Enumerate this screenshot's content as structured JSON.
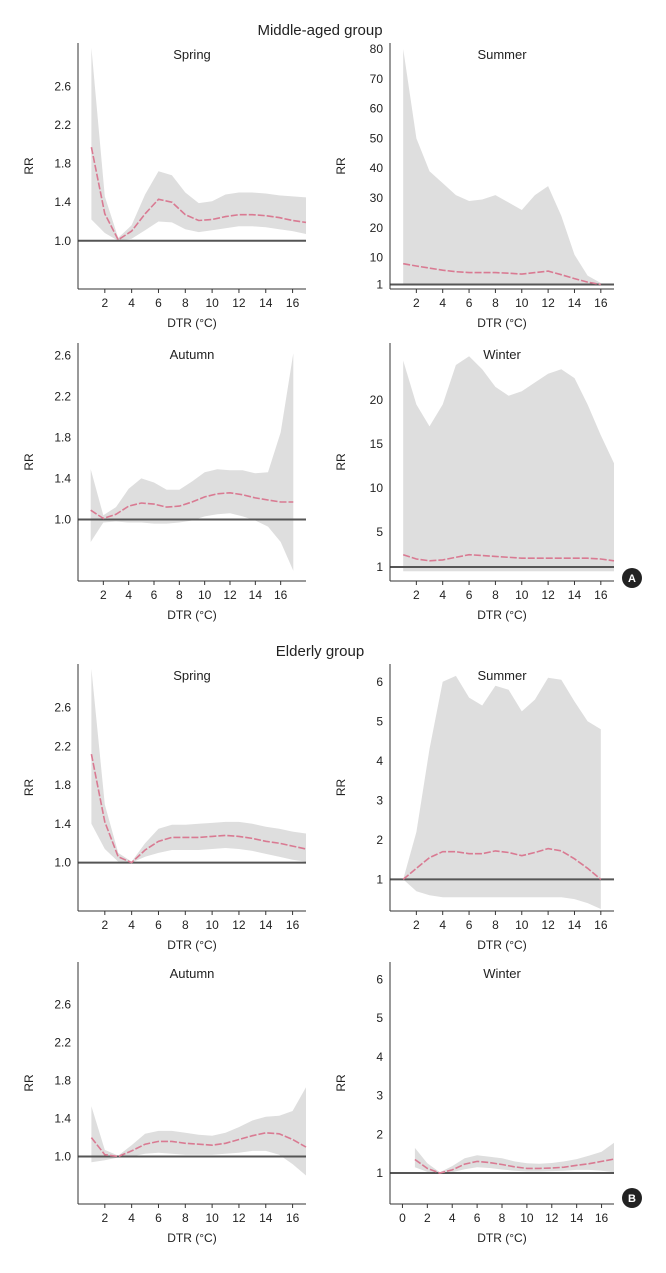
{
  "sections": [
    {
      "title": "Middle-aged group",
      "badge": "A"
    },
    {
      "title": "Elderly group",
      "badge": "B"
    }
  ],
  "chart_data": [
    {
      "type": "line",
      "section": 0,
      "title": "Spring",
      "xlabel": "DTR (°C)",
      "ylabel": "RR",
      "xlim": [
        0,
        17
      ],
      "ylim": [
        0.5,
        3.05
      ],
      "xticks": [
        "2",
        "4",
        "6",
        "8",
        "10",
        "12",
        "14",
        "16"
      ],
      "yticks": [
        "1.0",
        "1.4",
        "1.8",
        "2.2",
        "2.6"
      ],
      "reference_line": 1.0,
      "x": [
        1,
        2,
        3,
        4,
        5,
        6,
        7,
        8,
        9,
        10,
        11,
        12,
        13,
        14,
        15,
        16,
        17
      ],
      "rr": [
        1.97,
        1.28,
        1.01,
        1.1,
        1.28,
        1.43,
        1.4,
        1.27,
        1.21,
        1.22,
        1.25,
        1.27,
        1.27,
        1.26,
        1.24,
        1.21,
        1.19
      ],
      "lower": [
        1.22,
        1.08,
        1.0,
        1.02,
        1.11,
        1.2,
        1.19,
        1.12,
        1.09,
        1.11,
        1.13,
        1.15,
        1.15,
        1.14,
        1.12,
        1.1,
        1.07
      ],
      "upper": [
        3.0,
        1.46,
        1.03,
        1.16,
        1.48,
        1.72,
        1.68,
        1.5,
        1.39,
        1.41,
        1.48,
        1.5,
        1.5,
        1.49,
        1.47,
        1.46,
        1.45
      ]
    },
    {
      "type": "line",
      "section": 0,
      "title": "Summer",
      "xlabel": "DTR (°C)",
      "ylabel": "RR",
      "xlim": [
        0,
        17
      ],
      "ylim": [
        -0.5,
        82
      ],
      "xticks": [
        "2",
        "4",
        "6",
        "8",
        "10",
        "12",
        "14",
        "16"
      ],
      "yticks": [
        "1",
        "10",
        "20",
        "30",
        "40",
        "50",
        "60",
        "70",
        "80"
      ],
      "reference_line": 1,
      "x": [
        1,
        2,
        3,
        4,
        5,
        6,
        7,
        8,
        9,
        10,
        11,
        12,
        13,
        14,
        15,
        16
      ],
      "rr": [
        8,
        7.2,
        6.5,
        5.8,
        5.3,
        5.0,
        5.0,
        5.0,
        4.8,
        4.5,
        5.0,
        5.5,
        4.3,
        3.0,
        1.8,
        1.0
      ],
      "lower": [
        1,
        1,
        1,
        1,
        1,
        1,
        1,
        1,
        1,
        1,
        1,
        1,
        1,
        1,
        1,
        1
      ],
      "upper": [
        80,
        50,
        39,
        35,
        31,
        29,
        29.5,
        31,
        28.5,
        26,
        31,
        34,
        24,
        11,
        4,
        1.5
      ]
    },
    {
      "type": "line",
      "section": 0,
      "title": "Autumn",
      "xlabel": "DTR (°C)",
      "ylabel": "RR",
      "xlim": [
        0,
        18
      ],
      "ylim": [
        0.4,
        2.72
      ],
      "xticks": [
        "2",
        "4",
        "6",
        "8",
        "10",
        "12",
        "14",
        "16"
      ],
      "yticks": [
        "1.0",
        "1.4",
        "1.8",
        "2.2",
        "2.6"
      ],
      "reference_line": 1.0,
      "x": [
        1,
        2,
        3,
        4,
        5,
        6,
        7,
        8,
        9,
        10,
        11,
        12,
        13,
        14,
        15,
        16,
        17
      ],
      "rr": [
        1.09,
        1.01,
        1.05,
        1.13,
        1.16,
        1.15,
        1.12,
        1.13,
        1.17,
        1.22,
        1.25,
        1.26,
        1.24,
        1.21,
        1.19,
        1.17,
        1.17
      ],
      "lower": [
        0.78,
        0.97,
        0.98,
        0.97,
        0.97,
        0.96,
        0.96,
        0.97,
        0.99,
        1.03,
        1.05,
        1.06,
        1.03,
        0.99,
        0.93,
        0.78,
        0.5
      ],
      "upper": [
        1.49,
        1.04,
        1.12,
        1.3,
        1.4,
        1.36,
        1.29,
        1.29,
        1.37,
        1.46,
        1.49,
        1.48,
        1.48,
        1.45,
        1.46,
        1.85,
        2.62
      ]
    },
    {
      "type": "line",
      "section": 0,
      "title": "Winter",
      "xlabel": "DTR (°C)",
      "ylabel": "RR",
      "xlim": [
        0,
        17
      ],
      "ylim": [
        -0.6,
        26.5
      ],
      "xticks": [
        "2",
        "4",
        "6",
        "8",
        "10",
        "12",
        "14",
        "16"
      ],
      "yticks": [
        "1",
        "5",
        "10",
        "15",
        "20"
      ],
      "reference_line": 1,
      "x": [
        1,
        2,
        3,
        4,
        5,
        6,
        7,
        8,
        9,
        10,
        11,
        12,
        13,
        14,
        15,
        16,
        17
      ],
      "rr": [
        2.4,
        1.9,
        1.7,
        1.8,
        2.1,
        2.4,
        2.3,
        2.2,
        2.1,
        2.0,
        2.0,
        2.0,
        2.0,
        2.0,
        2.0,
        1.9,
        1.7
      ],
      "lower": [
        0.5,
        0.5,
        0.5,
        0.5,
        0.5,
        0.5,
        0.5,
        0.5,
        0.5,
        0.5,
        0.5,
        0.5,
        0.5,
        0.5,
        0.5,
        0.5,
        0.5
      ],
      "upper": [
        24.5,
        19.5,
        17,
        19.5,
        24,
        25,
        23.5,
        21.5,
        20.5,
        21,
        22,
        23,
        23.5,
        22.5,
        19.5,
        16,
        12.8
      ]
    },
    {
      "type": "line",
      "section": 1,
      "title": "Spring",
      "xlabel": "DTR (°C)",
      "ylabel": "RR",
      "xlim": [
        0,
        17
      ],
      "ylim": [
        0.5,
        3.05
      ],
      "xticks": [
        "2",
        "4",
        "6",
        "8",
        "10",
        "12",
        "14",
        "16"
      ],
      "yticks": [
        "1.0",
        "1.4",
        "1.8",
        "2.2",
        "2.6"
      ],
      "reference_line": 1.0,
      "x": [
        1,
        2,
        3,
        4,
        5,
        6,
        7,
        8,
        9,
        10,
        11,
        12,
        13,
        14,
        15,
        16,
        17
      ],
      "rr": [
        2.12,
        1.42,
        1.06,
        1.0,
        1.13,
        1.22,
        1.26,
        1.26,
        1.26,
        1.27,
        1.28,
        1.27,
        1.25,
        1.22,
        1.2,
        1.17,
        1.14
      ],
      "lower": [
        1.4,
        1.14,
        1.01,
        1.0,
        1.06,
        1.1,
        1.13,
        1.13,
        1.13,
        1.14,
        1.15,
        1.14,
        1.12,
        1.09,
        1.06,
        1.03,
        1.01
      ],
      "upper": [
        3.0,
        1.6,
        1.1,
        1.01,
        1.2,
        1.35,
        1.39,
        1.39,
        1.4,
        1.41,
        1.42,
        1.42,
        1.4,
        1.37,
        1.35,
        1.32,
        1.3
      ]
    },
    {
      "type": "line",
      "section": 1,
      "title": "Summer",
      "xlabel": "DTR (°C)",
      "ylabel": "RR",
      "xlim": [
        0,
        17
      ],
      "ylim": [
        0.2,
        6.45
      ],
      "xticks": [
        "2",
        "4",
        "6",
        "8",
        "10",
        "12",
        "14",
        "16"
      ],
      "yticks": [
        "1",
        "2",
        "3",
        "4",
        "5",
        "6"
      ],
      "reference_line": 1,
      "x": [
        1,
        2,
        3,
        4,
        5,
        6,
        7,
        8,
        9,
        10,
        11,
        12,
        13,
        14,
        15,
        16
      ],
      "rr": [
        1.0,
        1.28,
        1.55,
        1.7,
        1.7,
        1.65,
        1.65,
        1.72,
        1.68,
        1.6,
        1.68,
        1.78,
        1.72,
        1.52,
        1.28,
        1.0
      ],
      "lower": [
        1.0,
        0.7,
        0.6,
        0.55,
        0.55,
        0.55,
        0.55,
        0.55,
        0.55,
        0.55,
        0.55,
        0.55,
        0.55,
        0.5,
        0.4,
        0.25
      ],
      "upper": [
        1.0,
        2.2,
        4.3,
        6.0,
        6.15,
        5.6,
        5.4,
        5.9,
        5.8,
        5.25,
        5.55,
        6.1,
        6.05,
        5.5,
        5.0,
        4.8
      ]
    },
    {
      "type": "line",
      "section": 1,
      "title": "Autumn",
      "xlabel": "DTR (°C)",
      "ylabel": "RR",
      "xlim": [
        0,
        17
      ],
      "ylim": [
        0.5,
        3.05
      ],
      "xticks": [
        "2",
        "4",
        "6",
        "8",
        "10",
        "12",
        "14",
        "16"
      ],
      "yticks": [
        "1.0",
        "1.4",
        "1.8",
        "2.2",
        "2.6"
      ],
      "reference_line": 1.0,
      "x": [
        1,
        2,
        3,
        4,
        5,
        6,
        7,
        8,
        9,
        10,
        11,
        12,
        13,
        14,
        15,
        16,
        17
      ],
      "rr": [
        1.2,
        1.02,
        1.0,
        1.06,
        1.13,
        1.16,
        1.16,
        1.14,
        1.13,
        1.12,
        1.14,
        1.18,
        1.22,
        1.25,
        1.24,
        1.18,
        1.1
      ],
      "lower": [
        0.94,
        0.96,
        0.99,
        1.0,
        1.03,
        1.04,
        1.03,
        1.02,
        1.02,
        1.02,
        1.03,
        1.04,
        1.06,
        1.06,
        1.02,
        0.92,
        0.8
      ],
      "upper": [
        1.53,
        1.07,
        1.01,
        1.12,
        1.24,
        1.27,
        1.27,
        1.25,
        1.23,
        1.22,
        1.25,
        1.31,
        1.38,
        1.42,
        1.43,
        1.48,
        1.73
      ]
    },
    {
      "type": "line",
      "section": 1,
      "title": "Winter",
      "xlabel": "DTR (°C)",
      "ylabel": "RR",
      "xlim": [
        -1,
        17
      ],
      "ylim": [
        0.2,
        6.45
      ],
      "xticks": [
        "0",
        "2",
        "4",
        "6",
        "8",
        "10",
        "12",
        "14",
        "16"
      ],
      "yticks": [
        "1",
        "2",
        "3",
        "4",
        "5",
        "6"
      ],
      "reference_line": 1,
      "x": [
        1,
        2,
        3,
        4,
        5,
        6,
        7,
        8,
        9,
        10,
        11,
        12,
        13,
        14,
        15,
        16,
        17
      ],
      "rr": [
        1.35,
        1.12,
        1.0,
        1.08,
        1.23,
        1.3,
        1.27,
        1.22,
        1.16,
        1.12,
        1.12,
        1.13,
        1.15,
        1.2,
        1.24,
        1.3,
        1.36
      ],
      "lower": [
        1.15,
        1.03,
        0.99,
        1.02,
        1.1,
        1.15,
        1.13,
        1.09,
        1.06,
        1.04,
        1.04,
        1.05,
        1.06,
        1.08,
        1.08,
        1.06,
        1.02
      ],
      "upper": [
        1.65,
        1.25,
        1.02,
        1.18,
        1.38,
        1.46,
        1.42,
        1.38,
        1.3,
        1.25,
        1.24,
        1.26,
        1.3,
        1.36,
        1.45,
        1.55,
        1.78
      ]
    }
  ]
}
